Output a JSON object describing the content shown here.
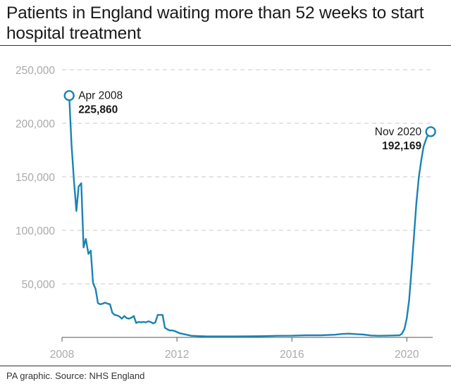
{
  "title": "Patients in England waiting more than 52 weeks to start hospital treatment",
  "source": "PA graphic. Source: NHS England",
  "colors": {
    "line": "#1b83b3",
    "grid": "#c8c8c8",
    "tick_text": "#aaaaaa",
    "text": "#1a1a1a"
  },
  "chart_data": {
    "type": "line",
    "title": "Patients in England waiting more than 52 weeks to start hospital treatment",
    "xlabel": "",
    "ylabel": "",
    "xlim": [
      2008,
      2020.9
    ],
    "ylim": [
      0,
      250000
    ],
    "grid": true,
    "y_ticks": [
      50000,
      100000,
      150000,
      200000,
      250000
    ],
    "y_tick_labels": [
      "50,000",
      "100,000",
      "150,000",
      "200,000",
      "250,000"
    ],
    "x_ticks": [
      2008,
      2012,
      2016,
      2020
    ],
    "x_tick_labels": [
      "2008",
      "2012",
      "2016",
      "2020"
    ],
    "series": [
      {
        "name": "Patients waiting more than 52 weeks",
        "x": [
          2008.25,
          2008.33,
          2008.42,
          2008.5,
          2008.58,
          2008.67,
          2008.75,
          2008.83,
          2008.92,
          2009.0,
          2009.08,
          2009.17,
          2009.25,
          2009.33,
          2009.42,
          2009.5,
          2009.58,
          2009.67,
          2009.75,
          2009.83,
          2009.92,
          2010.0,
          2010.08,
          2010.17,
          2010.25,
          2010.33,
          2010.42,
          2010.5,
          2010.58,
          2010.67,
          2010.75,
          2010.83,
          2010.92,
          2011.0,
          2011.08,
          2011.17,
          2011.25,
          2011.33,
          2011.42,
          2011.5,
          2011.58,
          2011.67,
          2011.75,
          2011.83,
          2011.92,
          2012.0,
          2012.08,
          2012.17,
          2012.25,
          2012.5,
          2012.75,
          2013.0,
          2013.5,
          2014.0,
          2014.5,
          2015.0,
          2015.5,
          2016.0,
          2016.5,
          2017.0,
          2017.5,
          2017.75,
          2018.0,
          2018.25,
          2018.5,
          2018.75,
          2019.0,
          2019.25,
          2019.5,
          2019.75,
          2019.83,
          2019.92,
          2020.0,
          2020.08,
          2020.17,
          2020.25,
          2020.33,
          2020.42,
          2020.5,
          2020.58,
          2020.67,
          2020.75,
          2020.83
        ],
        "values": [
          225860,
          180000,
          145000,
          118000,
          141000,
          144000,
          84000,
          92000,
          78000,
          81000,
          51000,
          45000,
          32000,
          31000,
          31500,
          32500,
          31500,
          31000,
          23000,
          21000,
          20500,
          19500,
          17500,
          20000,
          18000,
          17500,
          18500,
          20000,
          13500,
          14500,
          14000,
          14500,
          14000,
          15000,
          14500,
          13000,
          14000,
          21000,
          21000,
          21000,
          9000,
          7500,
          6500,
          6500,
          6000,
          5000,
          4000,
          3500,
          3000,
          1500,
          1200,
          1000,
          900,
          900,
          1000,
          1200,
          1500,
          1600,
          2000,
          2000,
          2500,
          3200,
          3500,
          3000,
          2600,
          1800,
          1500,
          1600,
          1800,
          2000,
          3500,
          8000,
          18000,
          35000,
          65000,
          95000,
          125000,
          150000,
          165000,
          178000,
          185000,
          190000,
          192169
        ]
      }
    ],
    "annotations": [
      {
        "label": "Apr 2008",
        "value_label": "225,860",
        "x": 2008.25,
        "y": 225860,
        "align": "right"
      },
      {
        "label": "Nov 2020",
        "value_label": "192,169",
        "x": 2020.83,
        "y": 192169,
        "align": "left"
      }
    ]
  }
}
